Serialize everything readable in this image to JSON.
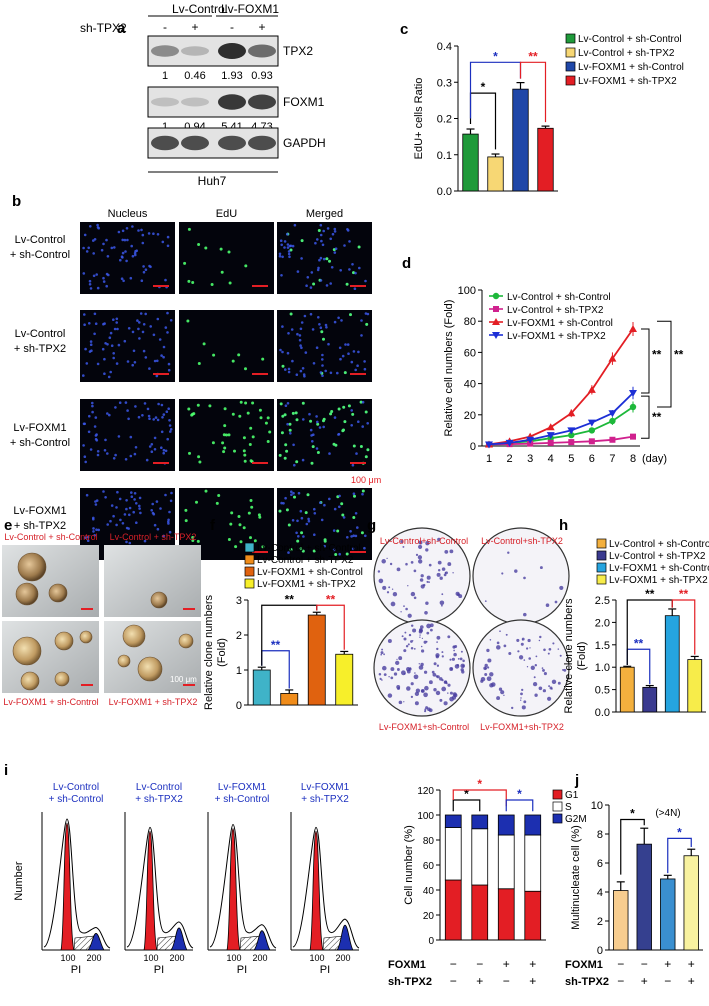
{
  "panels": {
    "a": "a",
    "b": "b",
    "c": "c",
    "d": "d",
    "e": "e",
    "f": "f",
    "g": "g",
    "h": "h",
    "i": "i",
    "j": "j"
  },
  "blot": {
    "group_labels": [
      "Lv-Control",
      "Lv-FOXM1"
    ],
    "sh_label": "sh-TPX2",
    "signs": [
      "-",
      "+",
      "-",
      "+"
    ],
    "rows": [
      {
        "name": "TPX2",
        "quant": [
          "1",
          "0.46",
          "1.93",
          "0.93"
        ],
        "bands": [
          0.55,
          0.35,
          1.0,
          0.7
        ]
      },
      {
        "name": "FOXM1",
        "quant": [
          "1",
          "0.94",
          "5.41",
          "4.73"
        ],
        "bands": [
          0.3,
          0.3,
          0.95,
          0.9
        ]
      },
      {
        "name": "GAPDH",
        "quant": [],
        "bands": [
          0.85,
          0.85,
          0.85,
          0.85
        ]
      }
    ],
    "cell_line": "Huh7"
  },
  "legend4": [
    "Lv-Control + sh-Control",
    "Lv-Control + sh-TPX2",
    "Lv-FOXM1 + sh-Control",
    "Lv-FOXM1 + sh-TPX2"
  ],
  "legend_compact": [
    "Lv-Control+sh-Control",
    "Lv-Control+sh-TPX2",
    "Lv-FOXM1+sh-Control",
    "Lv-FOXM1+sh-TPX2"
  ],
  "colors": {
    "c": [
      "#1f9a3a",
      "#f7d774",
      "#1f47a8",
      "#e31e24"
    ],
    "f": [
      "#3fb3c8",
      "#f08c1a",
      "#e0620f",
      "#f7ef2a"
    ],
    "h": [
      "#f3b03e",
      "#3a3a8f",
      "#25a4df",
      "#f7ec4a"
    ],
    "j": [
      "#f7cd8f",
      "#35408f",
      "#3a8fd0",
      "#f8f2a0"
    ],
    "d": [
      "#1db83a",
      "#d0218e",
      "#e31e24",
      "#1c2fd6"
    ],
    "sig_black": "#000000",
    "sig_blue": "#1b2fbf",
    "sig_red": "#e31e24",
    "e_title": "#d62028",
    "b_scale": "#e31e24"
  },
  "b": {
    "columns": [
      "Nucleus",
      "EdU",
      "Merged"
    ],
    "rows": [
      [
        "Lv-Control",
        "+ sh-Control"
      ],
      [
        "Lv-Control",
        "+ sh-TPX2"
      ],
      [
        "Lv-FOXM1",
        "+ sh-Control"
      ],
      [
        "Lv-FOXM1",
        "+ sh-TPX2"
      ]
    ],
    "scale": "100 μm"
  },
  "e": {
    "labels": [
      "Lv-Control + sh-Control",
      "Lv-Control + sh-TPX2",
      "Lv-FOXM1 + sh-Control",
      "Lv-FOXM1 + sh-TPX2"
    ],
    "scale": "100 μm"
  },
  "i": {
    "hist_titles": [
      [
        "Lv-Control",
        "+ sh-Control"
      ],
      [
        "Lv-Control",
        "+ sh-TPX2"
      ],
      [
        "Lv-FOXM1",
        "+ sh-Control"
      ],
      [
        "Lv-FOXM1",
        "+ sh-TPX2"
      ]
    ],
    "hist_ylabel": "Number",
    "hist_xlabel": "PI",
    "hist_xticks": [
      "100",
      "200"
    ],
    "stack_legend": [
      "G1",
      "S",
      "G2M"
    ],
    "stack_colors": [
      "#e31e24",
      "#ffffff",
      "#1c2fb0"
    ],
    "row_labels": [
      "FOXM1",
      "sh-TPX2"
    ],
    "foxm1_signs": [
      "−",
      "−",
      "+",
      "+"
    ],
    "tpx2_signs": [
      "−",
      "+",
      "−",
      "+"
    ]
  },
  "j_note": "(>4N)",
  "chart_data": [
    {
      "id": "c",
      "type": "bar",
      "categories": [
        "Lv-Control + sh-Control",
        "Lv-Control + sh-TPX2",
        "Lv-FOXM1 + sh-Control",
        "Lv-FOXM1 + sh-TPX2"
      ],
      "values": [
        0.157,
        0.094,
        0.281,
        0.173
      ],
      "errors": [
        0.014,
        0.008,
        0.018,
        0.006
      ],
      "ylabel": "EdU+ cells Ratio",
      "ylim": [
        0,
        0.4
      ],
      "yticks": [
        "0.0",
        "0.1",
        "0.2",
        "0.3",
        "0.4"
      ],
      "sig": [
        {
          "from": 0,
          "to": 1,
          "label": "*",
          "color": "black"
        },
        {
          "from": 0,
          "to": 2,
          "label": "*",
          "color": "blue"
        },
        {
          "from": 2,
          "to": 3,
          "label": "**",
          "color": "red"
        }
      ]
    },
    {
      "id": "d",
      "type": "line",
      "x": [
        1,
        2,
        3,
        4,
        5,
        6,
        7,
        8
      ],
      "xlabel": "(day)",
      "ylabel": "Relative cell numbers (Fold)",
      "ylim": [
        0,
        100
      ],
      "yticks": [
        "0",
        "20",
        "40",
        "60",
        "80",
        "100"
      ],
      "xticks": [
        "1",
        "2",
        "3",
        "4",
        "5",
        "6",
        "7",
        "8"
      ],
      "series": [
        {
          "name": "Lv-Control + sh-Control",
          "values": [
            1,
            2,
            3,
            5,
            7,
            10,
            16,
            25
          ],
          "errors": [
            0.3,
            0.4,
            0.6,
            0.8,
            1,
            1.5,
            2.5,
            3.5
          ]
        },
        {
          "name": "Lv-Control + sh-TPX2",
          "values": [
            1,
            1.2,
            1.5,
            2,
            2.5,
            3,
            4,
            6
          ],
          "errors": [
            0.2,
            0.3,
            0.3,
            0.4,
            0.5,
            0.6,
            0.7,
            1
          ]
        },
        {
          "name": "Lv-FOXM1 + sh-Control",
          "values": [
            1,
            3,
            6,
            12,
            21,
            36,
            56,
            75
          ],
          "errors": [
            0.4,
            0.6,
            0.9,
            1.5,
            2.5,
            3,
            4,
            4.5
          ]
        },
        {
          "name": "Lv-FOXM1 + sh-TPX2",
          "values": [
            1,
            2,
            4,
            7,
            10,
            15,
            21,
            34
          ],
          "errors": [
            0.3,
            0.4,
            0.6,
            0.8,
            1,
            1.5,
            2,
            4
          ]
        }
      ],
      "sig": [
        "**",
        "**",
        "**"
      ]
    },
    {
      "id": "f",
      "type": "bar",
      "categories": [
        "Lv-Control + sh-Control",
        "Lv-Control + sh-TPX2",
        "Lv-FOXM1 + sh-Control",
        "Lv-FOXM1 + sh-TPX2"
      ],
      "values": [
        1.0,
        0.33,
        2.57,
        1.45
      ],
      "errors": [
        0.08,
        0.1,
        0.08,
        0.08
      ],
      "ylabel": "Relative clone numbers (Fold)",
      "ylim": [
        0,
        3
      ],
      "yticks": [
        "0",
        "1",
        "2",
        "3"
      ],
      "sig": [
        {
          "from": 0,
          "to": 1,
          "label": "**",
          "color": "blue"
        },
        {
          "from": 0,
          "to": 2,
          "label": "**",
          "color": "black"
        },
        {
          "from": 2,
          "to": 3,
          "label": "**",
          "color": "red"
        }
      ]
    },
    {
      "id": "h",
      "type": "bar",
      "categories": [
        "Lv-Control + sh-Control",
        "Lv-Control + sh-TPX2",
        "Lv-FOXM1 + sh-Control",
        "Lv-FOXM1 + sh-TPX2"
      ],
      "values": [
        1.0,
        0.55,
        2.15,
        1.17
      ],
      "errors": [
        0.02,
        0.04,
        0.15,
        0.07
      ],
      "ylabel": "Relative clone numbers (Fold)",
      "ylim": [
        0,
        2.5
      ],
      "yticks": [
        "0.0",
        "0.5",
        "1.0",
        "1.5",
        "2.0",
        "2.5"
      ],
      "sig": [
        {
          "from": 0,
          "to": 1,
          "label": "**",
          "color": "blue"
        },
        {
          "from": 0,
          "to": 2,
          "label": "**",
          "color": "black"
        },
        {
          "from": 2,
          "to": 3,
          "label": "**",
          "color": "red"
        }
      ]
    },
    {
      "id": "i",
      "type": "bar",
      "stacked": true,
      "categories": [
        "1",
        "2",
        "3",
        "4"
      ],
      "series": [
        {
          "name": "G1",
          "values": [
            48,
            44,
            41,
            39
          ]
        },
        {
          "name": "S",
          "values": [
            42,
            45,
            43,
            45
          ]
        },
        {
          "name": "G2M",
          "values": [
            10,
            11,
            16,
            16
          ]
        }
      ],
      "ylabel": "Cell number (%)",
      "ylim": [
        0,
        120
      ],
      "yticks": [
        "0",
        "20",
        "40",
        "60",
        "80",
        "100",
        "120"
      ],
      "sig": [
        {
          "from": 0,
          "to": 1,
          "label": "*",
          "color": "black"
        },
        {
          "from": 0,
          "to": 2,
          "label": "*",
          "color": "red"
        },
        {
          "from": 2,
          "to": 3,
          "label": "*",
          "color": "blue"
        }
      ]
    },
    {
      "id": "j",
      "type": "bar",
      "categories": [
        "1",
        "2",
        "3",
        "4"
      ],
      "values": [
        4.1,
        7.3,
        4.9,
        6.5
      ],
      "errors": [
        0.6,
        1.1,
        0.25,
        0.45
      ],
      "ylabel": "Multinucleate cell (%)",
      "ylim": [
        0,
        10
      ],
      "yticks": [
        "0",
        "2",
        "4",
        "6",
        "8",
        "10"
      ],
      "sig": [
        {
          "from": 0,
          "to": 1,
          "label": "*",
          "color": "black"
        },
        {
          "from": 2,
          "to": 3,
          "label": "*",
          "color": "blue"
        }
      ]
    }
  ]
}
